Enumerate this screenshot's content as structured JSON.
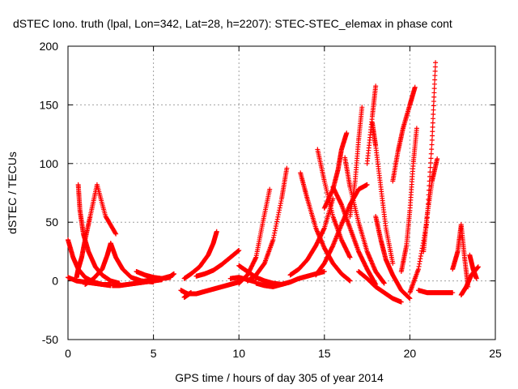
{
  "chart_data": {
    "type": "scatter",
    "title": "dSTEC Iono. truth (lpal, Lon=342, Lat=28, h=2207): STEC-STEC_elemax in phase cont",
    "xlabel": "GPS time / hours of day 305 of year 2014",
    "ylabel": "dSTEC  / TECUs",
    "xlim": [
      0,
      25
    ],
    "ylim": [
      -50,
      200
    ],
    "x_ticks": [
      0,
      5,
      10,
      15,
      20,
      25
    ],
    "y_ticks": [
      -50,
      0,
      50,
      100,
      150,
      200
    ],
    "grid": true,
    "marker": "+",
    "color": "#ff0000",
    "series": [
      {
        "x": [
          0.0,
          0.3,
          0.6,
          1.0,
          1.5,
          2.0,
          2.5
        ],
        "y": [
          35,
          20,
          10,
          3,
          -1,
          -3,
          -3
        ]
      },
      {
        "x": [
          0.0,
          0.5,
          1.0,
          1.5,
          2.0,
          2.5
        ],
        "y": [
          3,
          0,
          -1,
          -2,
          -3,
          -4
        ]
      },
      {
        "x": [
          0.5,
          0.6,
          0.8,
          1.0,
          1.3,
          1.7,
          2.2,
          2.8
        ],
        "y": [
          3,
          10,
          20,
          35,
          55,
          82,
          55,
          40
        ]
      },
      {
        "x": [
          0.6,
          0.7,
          0.9,
          1.2,
          1.6,
          2.0,
          2.5,
          3.0
        ],
        "y": [
          82,
          60,
          40,
          25,
          12,
          5,
          0,
          -2
        ]
      },
      {
        "x": [
          1.0,
          1.5,
          2.0,
          2.3,
          2.5
        ],
        "y": [
          -3,
          2,
          10,
          22,
          32
        ]
      },
      {
        "x": [
          2.5,
          2.8,
          3.2,
          3.7,
          4.3,
          5.0
        ],
        "y": [
          32,
          20,
          10,
          3,
          0,
          -1
        ]
      },
      {
        "x": [
          2.6,
          3.0,
          3.5,
          4.0,
          4.5,
          5.0,
          5.5
        ],
        "y": [
          -4,
          -4,
          -3,
          -2,
          -1,
          0,
          1
        ]
      },
      {
        "x": [
          4.0,
          4.5,
          5.0,
          5.5,
          6.0
        ],
        "y": [
          8,
          5,
          3,
          2,
          3
        ]
      },
      {
        "x": [
          4.5,
          5.0,
          5.5,
          6.0,
          6.2
        ],
        "y": [
          0,
          1,
          2,
          4,
          6
        ]
      },
      {
        "x": [
          6.6,
          7.0,
          7.5,
          8.0,
          8.5,
          9.0,
          9.5,
          10.0
        ],
        "y": [
          -8,
          -11,
          -11,
          -9,
          -7,
          -5,
          -3,
          -1
        ]
      },
      {
        "x": [
          6.8,
          7.0,
          7.2
        ],
        "y": [
          -14,
          -12,
          -10
        ]
      },
      {
        "x": [
          6.8,
          7.2,
          7.7,
          8.2,
          8.5,
          8.7
        ],
        "y": [
          2,
          6,
          12,
          22,
          32,
          42
        ]
      },
      {
        "x": [
          7.5,
          8.0,
          8.5,
          9.0,
          9.5,
          10.0
        ],
        "y": [
          4,
          6,
          9,
          14,
          20,
          26
        ]
      },
      {
        "x": [
          9.5,
          10.0,
          10.5,
          11.0
        ],
        "y": [
          2,
          3,
          1,
          -1
        ]
      },
      {
        "x": [
          10.0,
          10.5,
          11.0,
          11.5,
          12.0
        ],
        "y": [
          13,
          8,
          3,
          0,
          -2
        ]
      },
      {
        "x": [
          10.0,
          10.5,
          11.0,
          11.4,
          11.8
        ],
        "y": [
          -2,
          5,
          20,
          50,
          78
        ]
      },
      {
        "x": [
          10.5,
          11.0,
          11.5,
          12.0,
          12.5,
          12.8
        ],
        "y": [
          0,
          5,
          15,
          35,
          70,
          96
        ]
      },
      {
        "x": [
          11.0,
          11.5,
          12.0,
          12.5,
          13.0
        ],
        "y": [
          -2,
          -4,
          -5,
          -3,
          -1
        ]
      },
      {
        "x": [
          12.0,
          12.5,
          13.0,
          13.5,
          14.0,
          14.5,
          15.0
        ],
        "y": [
          -2,
          -3,
          -1,
          2,
          4,
          6,
          8
        ]
      },
      {
        "x": [
          13.0,
          13.5,
          14.0,
          14.5,
          15.0,
          15.5
        ],
        "y": [
          5,
          10,
          18,
          30,
          45,
          70
        ]
      },
      {
        "x": [
          13.6,
          14.0,
          14.5,
          15.0,
          15.5,
          16.0,
          16.5
        ],
        "y": [
          92,
          70,
          45,
          28,
          15,
          6,
          0
        ]
      },
      {
        "x": [
          14.6,
          15.0,
          15.5,
          16.0,
          16.5
        ],
        "y": [
          112,
          85,
          55,
          35,
          20
        ]
      },
      {
        "x": [
          14.5,
          15.0,
          15.5,
          16.0,
          16.5,
          17.0,
          17.5
        ],
        "y": [
          5,
          15,
          30,
          48,
          65,
          78,
          82
        ]
      },
      {
        "x": [
          15.0,
          15.5,
          15.8,
          16.0,
          16.3
        ],
        "y": [
          62,
          78,
          95,
          112,
          126
        ]
      },
      {
        "x": [
          15.5,
          16.0,
          16.5,
          17.0,
          17.5,
          18.0
        ],
        "y": [
          80,
          65,
          45,
          25,
          10,
          -3
        ]
      },
      {
        "x": [
          16.2,
          16.5,
          17.0,
          17.5,
          18.0,
          18.5
        ],
        "y": [
          105,
          80,
          50,
          25,
          8,
          -2
        ]
      },
      {
        "x": [
          16.5,
          16.8,
          17.0,
          17.2
        ],
        "y": [
          55,
          85,
          120,
          148
        ]
      },
      {
        "x": [
          17.5,
          17.8,
          18.0
        ],
        "y": [
          100,
          140,
          166
        ]
      },
      {
        "x": [
          17.8,
          18.0,
          18.3,
          18.6,
          19.0
        ],
        "y": [
          135,
          115,
          80,
          45,
          15
        ]
      },
      {
        "x": [
          18.0,
          18.3,
          18.6,
          19.0,
          19.5,
          20.0
        ],
        "y": [
          55,
          35,
          18,
          5,
          -8,
          -15
        ]
      },
      {
        "x": [
          17.0,
          17.5,
          18.0,
          18.5,
          19.0,
          19.5
        ],
        "y": [
          8,
          2,
          -5,
          -10,
          -15,
          -18
        ]
      },
      {
        "x": [
          19.0,
          19.3,
          19.6,
          20.0,
          20.3
        ],
        "y": [
          85,
          110,
          130,
          150,
          165
        ]
      },
      {
        "x": [
          19.5,
          19.8,
          20.0,
          20.2,
          20.4
        ],
        "y": [
          8,
          30,
          60,
          100,
          130
        ]
      },
      {
        "x": [
          20.0,
          20.5,
          21.0,
          21.3,
          21.5
        ],
        "y": [
          -10,
          10,
          50,
          120,
          186
        ]
      },
      {
        "x": [
          20.8,
          21.0,
          21.3,
          21.6
        ],
        "y": [
          25,
          55,
          85,
          104
        ]
      },
      {
        "x": [
          20.5,
          21.0,
          21.5,
          22.0,
          22.5
        ],
        "y": [
          -8,
          -10,
          -10,
          -10,
          -10
        ]
      },
      {
        "x": [
          22.5,
          22.8,
          23.0,
          23.2,
          23.4
        ],
        "y": [
          10,
          25,
          48,
          20,
          -5
        ]
      },
      {
        "x": [
          23.0,
          23.3,
          23.6,
          24.0
        ],
        "y": [
          -12,
          -5,
          5,
          12
        ]
      },
      {
        "x": [
          23.5,
          23.7,
          23.9
        ],
        "y": [
          22,
          10,
          2
        ]
      }
    ]
  }
}
